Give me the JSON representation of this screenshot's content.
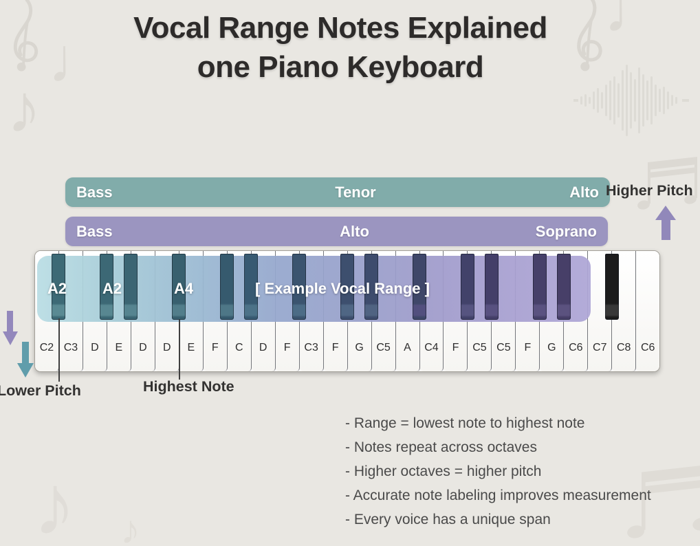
{
  "title": {
    "line1": "Vocal Range Notes Explained",
    "line2": "one Piano Keyboard"
  },
  "pitch_bars": [
    {
      "left_label": "Bass",
      "center_label": "Tenor",
      "right_label": "Alto",
      "color": "#81acaa"
    },
    {
      "left_label": "Bass",
      "center_label": "Alto",
      "right_label": "Soprano",
      "color": "#9b95c0"
    }
  ],
  "side_labels": {
    "higher_pitch": "Higher Pitch",
    "lower_pitch": "Lower Pitch",
    "highest_note": "Highest Note"
  },
  "keyboard": {
    "overlay_label_1": "A2",
    "overlay_label_2": "A2",
    "overlay_label_3": "A4",
    "example_range_label": "[ Example Vocal Range ]",
    "white_keys": [
      "C2",
      "C3",
      "D",
      "E",
      "D",
      "D",
      "E",
      "F",
      "C",
      "D",
      "F",
      "C3",
      "F",
      "G",
      "C5",
      "A",
      "C4",
      "F",
      "C5",
      "C5",
      "F",
      "G",
      "C6",
      "C7",
      "C8",
      "C6"
    ],
    "black_keys": [
      {
        "after_white_index": 1,
        "body": "#3d6a76",
        "tip": "#5a8a93"
      },
      {
        "after_white_index": 3,
        "body": "#3c6875",
        "tip": "#588791"
      },
      {
        "after_white_index": 4,
        "body": "#3b6573",
        "tip": "#568490"
      },
      {
        "after_white_index": 6,
        "body": "#38606f",
        "tip": "#527e8b"
      },
      {
        "after_white_index": 8,
        "body": "#365a6e",
        "tip": "#4e7787"
      },
      {
        "after_white_index": 9,
        "body": "#385a72",
        "tip": "#4c7288"
      },
      {
        "after_white_index": 11,
        "body": "#3b546f",
        "tip": "#4c6c86"
      },
      {
        "after_white_index": 13,
        "body": "#3d4f6e",
        "tip": "#4f6684"
      },
      {
        "after_white_index": 14,
        "body": "#3e4c6d",
        "tip": "#506382"
      },
      {
        "after_white_index": 16,
        "body": "#3f4769",
        "tip": "#524f7e"
      },
      {
        "after_white_index": 18,
        "body": "#42426a",
        "tip": "#565480"
      },
      {
        "after_white_index": 19,
        "body": "#443f69",
        "tip": "#585180"
      },
      {
        "after_white_index": 21,
        "body": "#464069",
        "tip": "#5a5280"
      },
      {
        "after_white_index": 22,
        "body": "#473f68",
        "tip": "#5b527f"
      },
      {
        "after_white_index": 24,
        "body": "#1c1c1c",
        "tip": "#383838"
      }
    ],
    "overlay_gradient": [
      "#b9dde4",
      "#a5cbd7",
      "#9ab9d2",
      "#95a7cd",
      "#98a0cb",
      "#9f9bcb",
      "#a8a0d1",
      "#aea6d6"
    ]
  },
  "notes_list": [
    "- Range = lowest note to highest note",
    "- Notes repeat across octaves",
    "- Higher octaves = higher pitch",
    "- Accurate note labeling improves measurement",
    "- Every voice has a unique span"
  ],
  "colors": {
    "background": "#e9e7e2",
    "bar_teal": "#81acaa",
    "bar_purple": "#9b95c0",
    "arrow_purple": "#9388bc",
    "arrow_teal": "#609dab",
    "text_dark": "#2d2b2a",
    "decoration_gray": "#dad6d0"
  }
}
